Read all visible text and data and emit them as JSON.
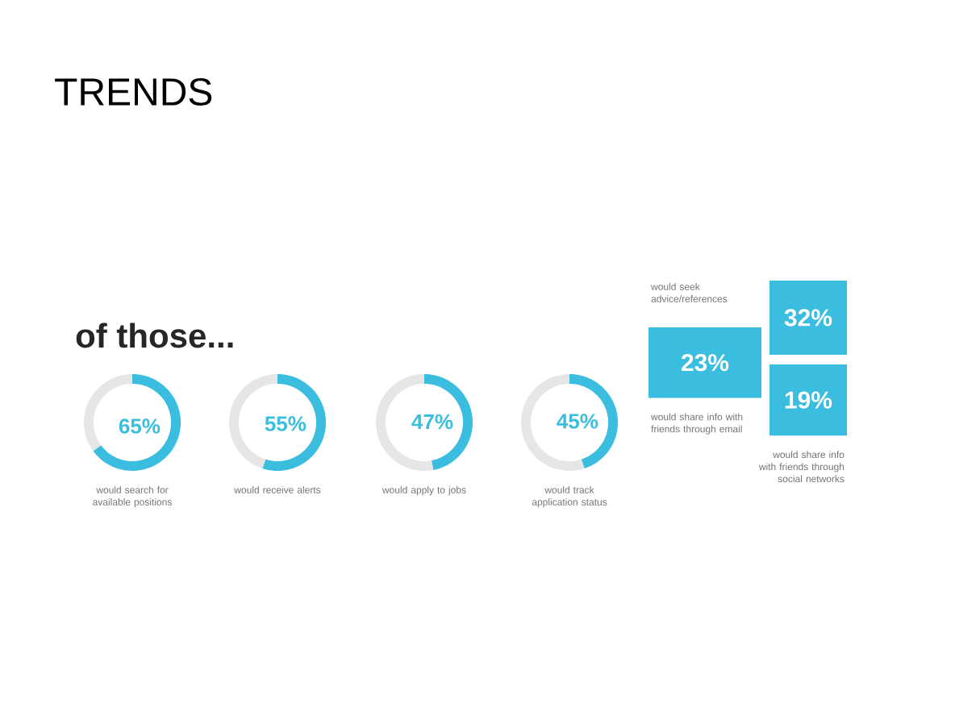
{
  "chart_data": [
    {
      "type": "other",
      "title": "TRENDS",
      "subtitle": "of those..."
    },
    {
      "type": "donut",
      "categories": [
        null,
        null
      ],
      "values": [
        65,
        35
      ],
      "colors": [
        "#3bbde0",
        "#e6e6e6"
      ],
      "value_labels": [
        "65%",
        null
      ],
      "annotations": [
        "would search for available positions"
      ]
    },
    {
      "type": "donut",
      "categories": [
        null,
        null
      ],
      "values": [
        55,
        45
      ],
      "colors": [
        "#3bbde0",
        "#e6e6e6"
      ],
      "value_labels": [
        "55%",
        null
      ],
      "annotations": [
        "would receive alerts"
      ]
    },
    {
      "type": "donut",
      "categories": [
        null,
        null
      ],
      "values": [
        47,
        53
      ],
      "colors": [
        "#3bbde0",
        "#e6e6e6"
      ],
      "value_labels": [
        "47%",
        null
      ],
      "annotations": [
        "would apply to jobs"
      ]
    },
    {
      "type": "donut",
      "categories": [
        null,
        null
      ],
      "values": [
        45,
        55
      ],
      "colors": [
        "#3bbde0",
        "#e6e6e6"
      ],
      "value_labels": [
        "45%",
        null
      ],
      "annotations": [
        "would track application status"
      ]
    },
    {
      "type": "other",
      "categories": [
        "would seek advice/references",
        "would share info with friends through email",
        "would share info with friends through social networks"
      ],
      "values": [
        32,
        23,
        19
      ],
      "value_labels": [
        "32%",
        "23%",
        "19%"
      ],
      "color": "#3bbde0"
    }
  ]
}
